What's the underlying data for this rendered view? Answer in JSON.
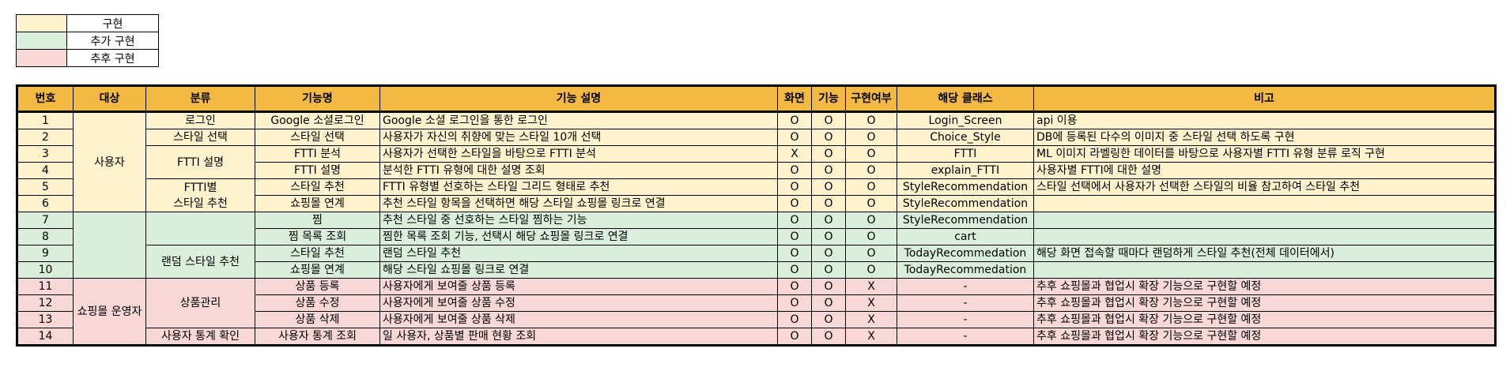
{
  "legend": [
    {
      "label": "구현",
      "color": "#fff2cc"
    },
    {
      "label": "추가 구현",
      "color": "#d9efdb"
    },
    {
      "label": "추후 구현",
      "color": "#f8d7d7"
    }
  ],
  "colors": {
    "header": "#f4b942",
    "implemented": "#fff2cc",
    "additional": "#d9efdb",
    "future": "#f8d7d7"
  },
  "headers": [
    "번호",
    "대상",
    "분류",
    "기능명",
    "기능 설명",
    "화면",
    "기능",
    "구현여부",
    "해당 클래스",
    "비고"
  ],
  "groups": {
    "target_user": "사용자",
    "target_mall_operator": "쇼핑몰 운영자",
    "cat_login": "로그인",
    "cat_style_select": "스타일 선택",
    "cat_ftti_desc": "FTTI 설명",
    "cat_ftti_reco_line1": "FTTI별",
    "cat_ftti_reco_line2": "스타일 추천",
    "cat_random_reco": "랜덤 스타일 추천",
    "cat_product_mgmt": "상품관리",
    "cat_user_stats": "사용자 통계 확인"
  },
  "rows": [
    {
      "no": "1",
      "name": "Google 소셜로그인",
      "desc": "Google 소셜 로그인을 통한 로그인",
      "screen": "O",
      "func": "O",
      "done": "O",
      "cls": "Login_Screen",
      "note": "api 이용",
      "status": "implemented"
    },
    {
      "no": "2",
      "name": "스타일 선택",
      "desc": "사용자가 자신의 취향에 맞는 스타일 10개 선택",
      "screen": "O",
      "func": "O",
      "done": "O",
      "cls": "Choice_Style",
      "note": "DB에 등록된 다수의 이미지 중 스타일 선택 하도록 구현",
      "status": "implemented"
    },
    {
      "no": "3",
      "name": "FTTI 분석",
      "desc": "사용자가 선택한 스타일을 바탕으로 FTTI 분석",
      "screen": "X",
      "func": "O",
      "done": "O",
      "cls": "FTTI",
      "note": "ML 이미지 라벨링한 데이터를 바탕으로 사용자별 FTTI 유형 분류 로직 구현",
      "status": "implemented"
    },
    {
      "no": "4",
      "name": "FTTI 설명",
      "desc": "분석한 FTTI 유형에 대한 설명 조회",
      "screen": "O",
      "func": "O",
      "done": "O",
      "cls": "explain_FTTI",
      "note": "사용자별 FTTI에 대한 설명",
      "status": "implemented"
    },
    {
      "no": "5",
      "name": "스타일 추천",
      "desc": "FTTI 유형별 선호하는 스타일 그리드 형태로 추천",
      "screen": "O",
      "func": "O",
      "done": "O",
      "cls": "StyleRecommendation",
      "note": "스타일 선택에서 사용자가 선택한 스타일의 비율 참고하여 스타일 추천",
      "status": "implemented"
    },
    {
      "no": "6",
      "name": "쇼핑몰 연계",
      "desc": "추천 스타일 항목을 선택하면 해당 스타일 쇼핑몰 링크로 연결",
      "screen": "O",
      "func": "O",
      "done": "O",
      "cls": "StyleRecommendation",
      "note": "",
      "status": "implemented"
    },
    {
      "no": "7",
      "name": "찜",
      "desc": "추천 스타일 중 선호하는 스타일 찜하는 기능",
      "screen": "O",
      "func": "O",
      "done": "O",
      "cls": "StyleRecommendation",
      "note": "",
      "status": "additional"
    },
    {
      "no": "8",
      "name": "찜 목록 조회",
      "desc": "찜한 목록 조회 기능, 선택시 해당 쇼핑몰 링크로 연결",
      "screen": "O",
      "func": "O",
      "done": "O",
      "cls": "cart",
      "note": "",
      "status": "additional"
    },
    {
      "no": "9",
      "name": "스타일 추천",
      "desc": "랜덤 스타일 추천",
      "screen": "O",
      "func": "O",
      "done": "O",
      "cls": "TodayRecommedation",
      "note": "해당 화면 접속할 때마다 랜덤하게 스타일 추천(전체 데이터에서)",
      "status": "additional"
    },
    {
      "no": "10",
      "name": "쇼핑몰 연계",
      "desc": "해당 스타일 쇼핑몰 링크로 연결",
      "screen": "O",
      "func": "O",
      "done": "O",
      "cls": "TodayRecommedation",
      "note": "",
      "status": "additional"
    },
    {
      "no": "11",
      "name": "상품 등록",
      "desc": "사용자에게 보여줄 상품 등록",
      "screen": "O",
      "func": "O",
      "done": "X",
      "cls": "-",
      "note": "추후 쇼핑몰과 협업시 확장 기능으로 구현할 예정",
      "status": "future"
    },
    {
      "no": "12",
      "name": "상품 수정",
      "desc": "사용자에게 보여줄 상품 수정",
      "screen": "O",
      "func": "O",
      "done": "X",
      "cls": "-",
      "note": "추후 쇼핑몰과 협업시 확장 기능으로 구현할 예정",
      "status": "future"
    },
    {
      "no": "13",
      "name": "상품 삭제",
      "desc": "사용자에게 보여줄 상품 삭제",
      "screen": "O",
      "func": "O",
      "done": "X",
      "cls": "-",
      "note": "추후 쇼핑몰과 협업시 확장 기능으로 구현할 예정",
      "status": "future"
    },
    {
      "no": "14",
      "name": "사용자 통계 조회",
      "desc": "일 사용자, 상품별 판매 현황 조회",
      "screen": "O",
      "func": "O",
      "done": "X",
      "cls": "-",
      "note": "추후 쇼핑몰과 협업시 확장 기능으로 구현할 예정",
      "status": "future"
    }
  ]
}
